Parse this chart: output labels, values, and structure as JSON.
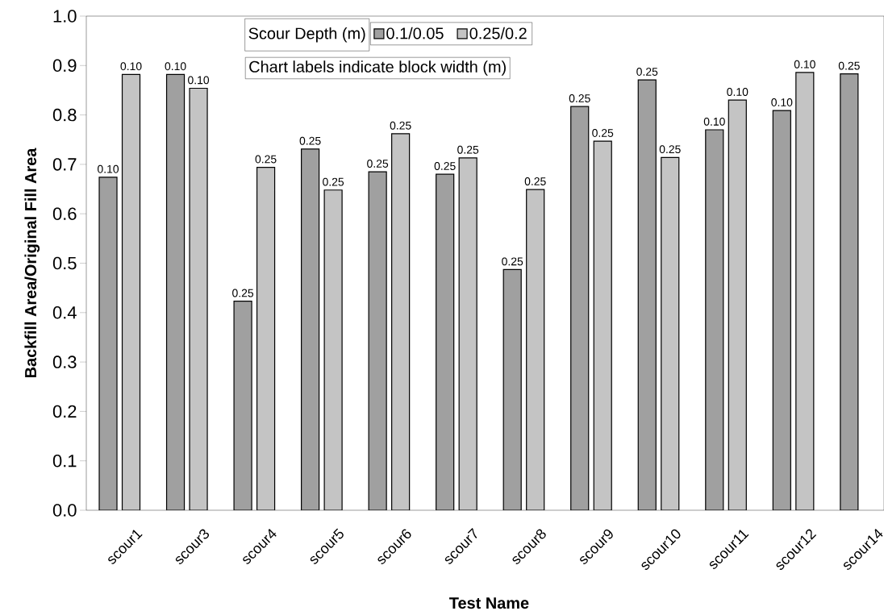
{
  "chart_data": {
    "type": "bar",
    "xlabel": "Test Name",
    "ylabel": "Backfill Area/Original Fill Area",
    "legend_title": "Scour Depth (m)",
    "annotations": [
      "Chart labels indicate block width (m)",
      "0.10",
      "0.10",
      "0.10",
      "0.10",
      "0.25",
      "0.25",
      "0.25",
      "0.25",
      "0.25",
      "0.25",
      "0.25",
      "0.25",
      "0.25",
      "0.25",
      "0.25",
      "0.25",
      "0.25",
      "0.25",
      "0.10",
      "0.10",
      "0.10",
      "0.10",
      "0.25"
    ],
    "categories": [
      "scour1",
      "scour3",
      "scour4",
      "scour5",
      "scour6",
      "scour7",
      "scour8",
      "scour9",
      "scour10",
      "scour11",
      "scour12",
      "scour14"
    ],
    "series": [
      {
        "name": "0.1/0.05",
        "color": "#a0a0a0",
        "values": [
          0.674,
          0.882,
          0.423,
          0.731,
          0.685,
          0.68,
          0.487,
          0.817,
          0.871,
          0.77,
          0.809,
          0.883
        ]
      },
      {
        "name": "0.25/0.2",
        "color": "#c4c4c4",
        "values": [
          0.882,
          0.854,
          0.694,
          0.648,
          0.762,
          0.713,
          0.649,
          0.747,
          0.714,
          0.83,
          0.886,
          null
        ]
      }
    ],
    "ylim": [
      0,
      1
    ],
    "yticks": [
      {
        "value": 0,
        "label": "0.0"
      },
      0.1,
      0.2,
      0.3,
      0.4,
      0.5,
      0.6,
      0.7,
      0.8,
      0.9,
      {
        "value": 1,
        "label": "1.0"
      }
    ],
    "grid": false,
    "legend": "top"
  }
}
